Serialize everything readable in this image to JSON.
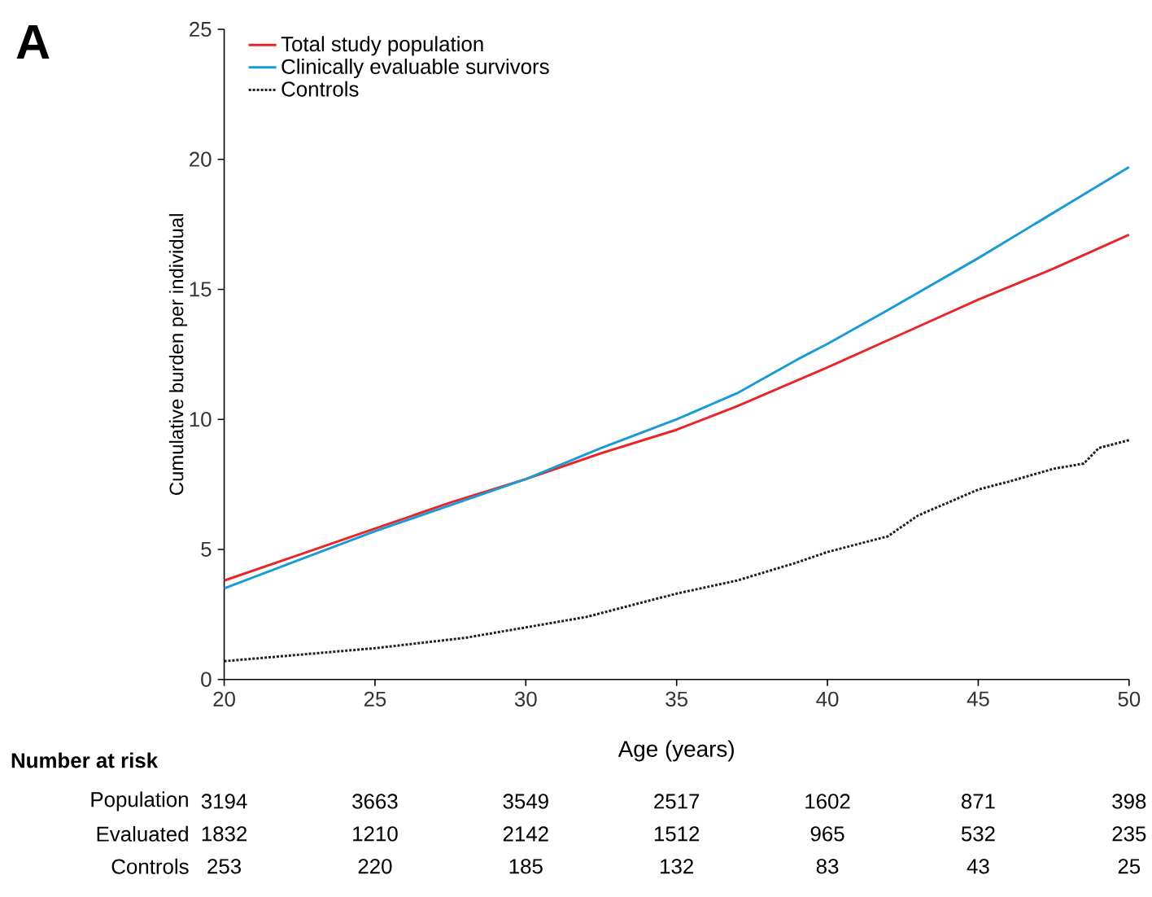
{
  "chart_data": {
    "type": "line",
    "xlabel": "Age (years)",
    "ylabel": "Cumulative burden per individual",
    "xlim": [
      20,
      50
    ],
    "ylim": [
      0,
      25
    ],
    "xticks": [
      20,
      25,
      30,
      35,
      40,
      45,
      50
    ],
    "yticks": [
      0,
      5,
      10,
      15,
      20,
      25
    ],
    "grid": false,
    "legend": "top left",
    "marker": "none",
    "series": [
      {
        "name": "Total study population",
        "color": "#e8262a",
        "line_style": "solid",
        "x": [
          20,
          22.5,
          25,
          27.5,
          30,
          32.5,
          35,
          37,
          40,
          42.5,
          45,
          47.5,
          50
        ],
        "values": [
          3.8,
          4.8,
          5.8,
          6.8,
          7.7,
          8.7,
          9.6,
          10.5,
          12.0,
          13.3,
          14.6,
          15.8,
          17.1
        ]
      },
      {
        "name": "Clinically evaluable survivors",
        "color": "#1a9ad6",
        "line_style": "solid",
        "x": [
          20,
          22.5,
          25,
          27.5,
          30,
          32.5,
          35,
          37,
          39,
          40,
          42,
          45,
          47,
          50
        ],
        "values": [
          3.5,
          4.6,
          5.7,
          6.7,
          7.7,
          8.9,
          10.0,
          11.0,
          12.3,
          12.9,
          14.2,
          16.2,
          17.6,
          19.7
        ]
      },
      {
        "name": "Controls",
        "color": "#231f20",
        "line_style": "dotted",
        "x": [
          20,
          22,
          25,
          28,
          30,
          32,
          34,
          35,
          37,
          39,
          40,
          42,
          43,
          45,
          46,
          47.5,
          48.5,
          49,
          50
        ],
        "values": [
          0.7,
          0.9,
          1.2,
          1.6,
          2.0,
          2.4,
          3.0,
          3.3,
          3.8,
          4.5,
          4.9,
          5.5,
          6.3,
          7.3,
          7.6,
          8.1,
          8.3,
          8.9,
          9.2
        ]
      }
    ],
    "annotations": [
      "A",
      "Number at risk",
      "Population",
      "3194",
      "3663",
      "3549",
      "2517",
      "1602",
      "871",
      "398",
      "Evaluated",
      "1832",
      "1210",
      "2142",
      "1512",
      "965",
      "532",
      "235",
      "Controls",
      "253",
      "220",
      "185",
      "132",
      "83",
      "43",
      "25"
    ]
  }
}
